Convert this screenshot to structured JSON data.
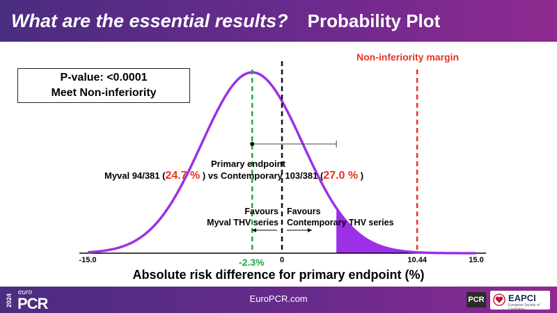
{
  "header": {
    "question": "What are the essential results?",
    "subtitle": "Probability Plot"
  },
  "result_box": {
    "line1": "P-value: <0.0001",
    "line2": "Meet Non-inferiority"
  },
  "margin_label": "Non-inferiority margin",
  "primary_endpoint": {
    "title": "Primary endpoint",
    "myval_text": "Myval 94/381 (",
    "myval_pct": "24.7 %",
    "mid_text": " ) vs Contemporary 103/381 (",
    "contemp_pct": "27.0 %",
    "end_text": " )"
  },
  "favours": {
    "left_line1": "Favours",
    "left_line2": "Myval THV series",
    "right_line1": "Favours",
    "right_line2": "Contemporary THV series"
  },
  "chart_data": {
    "type": "area",
    "xlabel": "Absolute risk difference for primary endpoint (%)",
    "xlim": [
      -15.0,
      15.0
    ],
    "x_ticks": [
      "-15.0",
      "0",
      "10.44",
      "15.0"
    ],
    "x_tick_values": [
      -15.0,
      0,
      10.44,
      15.0
    ],
    "point_estimate": -2.3,
    "point_estimate_label": "-2.3%",
    "upper_confidence_bound": 4.2,
    "non_inferiority_margin": 10.44,
    "distribution": {
      "mean": -2.3,
      "sd": 3.9
    },
    "shaded_tail_from": 4.2,
    "colors": {
      "curve": "#9b30e6",
      "tail": "#9b30e6",
      "estimate_line": "#22a64a",
      "zero_line": "#111111",
      "margin_line": "#e53222"
    }
  },
  "footer": {
    "url": "EuroPCR.com",
    "logo_year": "2024",
    "logo_euro": "euro",
    "logo_pcr": "PCR",
    "logo_pcr_small": "PCR",
    "logo_eapci": "EAPCI",
    "logo_eapci_sub": "European Society of Cardiology"
  }
}
